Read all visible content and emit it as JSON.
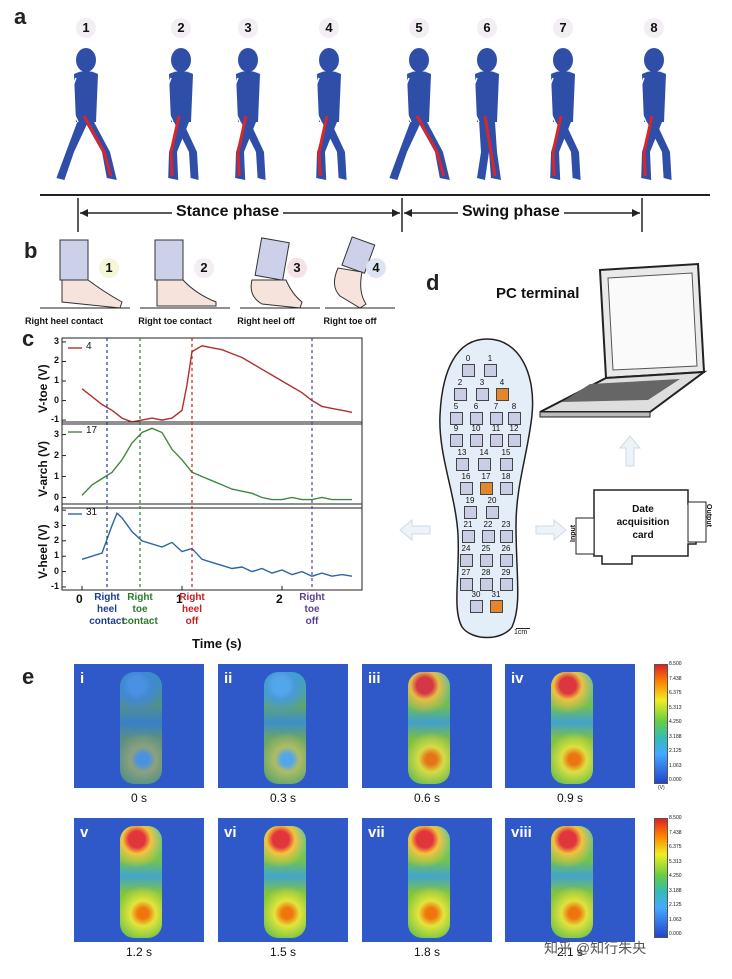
{
  "panel_a": {
    "letter": "a",
    "frames": [
      "1",
      "2",
      "3",
      "4",
      "5",
      "6",
      "7",
      "8"
    ],
    "stance_label": "Stance phase",
    "swing_label": "Swing phase",
    "colors": {
      "body": "#2f4ea8",
      "leg_highlight": "#d9262b"
    }
  },
  "panel_b": {
    "letter": "b",
    "steps": [
      {
        "num": "1",
        "label": "Right heel contact"
      },
      {
        "num": "2",
        "label": "Right toe contact"
      },
      {
        "num": "3",
        "label": "Right heel off"
      },
      {
        "num": "4",
        "label": "Right toe off"
      }
    ]
  },
  "panel_c": {
    "letter": "c",
    "xlabel": "Time (s)",
    "x_ticks": [
      "0",
      "1",
      "2"
    ],
    "events": [
      {
        "label_lines": [
          "Right",
          "heel",
          "contact"
        ],
        "color": "#1f3d8f",
        "time": 0.25
      },
      {
        "label_lines": [
          "Right",
          "toe",
          "contact"
        ],
        "color": "#2d7a2d",
        "time": 0.58
      },
      {
        "label_lines": [
          "Right",
          "heel",
          "off"
        ],
        "color": "#c8201f",
        "time": 1.1
      },
      {
        "label_lines": [
          "Right",
          "toe",
          "off"
        ],
        "color": "#5b3f8f",
        "time": 2.3
      }
    ]
  },
  "panel_d": {
    "letter": "d",
    "pc_label": "PC terminal",
    "card_label_lines": [
      "Date",
      "acquisition",
      "card"
    ],
    "input_label": "Input",
    "output_label": "Output",
    "scale_label": "1cm",
    "sensors": [
      "0",
      "1",
      "2",
      "3",
      "4",
      "5",
      "6",
      "7",
      "8",
      "9",
      "10",
      "11",
      "12",
      "13",
      "14",
      "15",
      "16",
      "17",
      "18",
      "19",
      "20",
      "21",
      "22",
      "23",
      "24",
      "25",
      "26",
      "27",
      "28",
      "29",
      "30",
      "31"
    ],
    "hot_sensors": [
      "4",
      "17",
      "31"
    ]
  },
  "panel_e": {
    "letter": "e",
    "frames": [
      {
        "roman": "i",
        "time": "0 s"
      },
      {
        "roman": "ii",
        "time": "0.3 s"
      },
      {
        "roman": "iii",
        "time": "0.6 s"
      },
      {
        "roman": "iv",
        "time": "0.9 s"
      },
      {
        "roman": "v",
        "time": "1.2 s"
      },
      {
        "roman": "vi",
        "time": "1.5 s"
      },
      {
        "roman": "vii",
        "time": "1.8 s"
      },
      {
        "roman": "viii",
        "time": "2.1 s"
      }
    ],
    "watermark": "知乎 @知行朱央"
  },
  "chart_data": [
    {
      "type": "line",
      "title": "",
      "xlabel": "Time (s)",
      "ylabel": "V-toe (V)",
      "xlim": [
        -0.2,
        2.8
      ],
      "ylim": [
        -1.2,
        3.2
      ],
      "y_ticks": [
        "-1",
        "0",
        "1",
        "2",
        "3"
      ],
      "series": [
        {
          "name": "4",
          "color": "#b0302b",
          "x": [
            0,
            0.1,
            0.2,
            0.3,
            0.4,
            0.5,
            0.6,
            0.7,
            0.8,
            0.9,
            1.0,
            1.05,
            1.1,
            1.2,
            1.3,
            1.4,
            1.5,
            1.6,
            1.7,
            1.8,
            1.9,
            2.0,
            2.1,
            2.2,
            2.3,
            2.4,
            2.5,
            2.6,
            2.7
          ],
          "y": [
            0.6,
            0.2,
            -0.2,
            -0.5,
            -0.9,
            -1.1,
            -1.0,
            -0.9,
            -1.0,
            -0.9,
            -0.5,
            0.8,
            2.5,
            2.8,
            2.7,
            2.6,
            2.4,
            2.2,
            1.9,
            1.6,
            1.3,
            1.0,
            0.7,
            0.4,
            0.0,
            -0.3,
            -0.4,
            -0.5,
            -0.6
          ]
        }
      ]
    },
    {
      "type": "line",
      "title": "",
      "xlabel": "Time (s)",
      "ylabel": "V-arch (V)",
      "xlim": [
        -0.2,
        2.8
      ],
      "ylim": [
        -0.5,
        3.6
      ],
      "y_ticks": [
        "0",
        "1",
        "2",
        "3"
      ],
      "series": [
        {
          "name": "17",
          "color": "#3e8a3a",
          "x": [
            0,
            0.1,
            0.2,
            0.3,
            0.4,
            0.5,
            0.6,
            0.7,
            0.8,
            0.9,
            1.0,
            1.1,
            1.2,
            1.3,
            1.4,
            1.5,
            1.6,
            1.7,
            1.8,
            1.9,
            2.0,
            2.1,
            2.2,
            2.3,
            2.4,
            2.5,
            2.6,
            2.7
          ],
          "y": [
            0.1,
            0.6,
            0.9,
            1.2,
            1.8,
            2.6,
            3.1,
            3.3,
            3.1,
            2.3,
            1.8,
            1.2,
            1.0,
            0.8,
            0.6,
            0.4,
            0.3,
            0.2,
            0.0,
            -0.1,
            -0.1,
            0.0,
            -0.1,
            -0.1,
            0.0,
            -0.1,
            -0.1,
            -0.1
          ]
        }
      ]
    },
    {
      "type": "line",
      "title": "",
      "xlabel": "Time (s)",
      "ylabel": "V-heel (V)",
      "xlim": [
        -0.2,
        2.8
      ],
      "ylim": [
        -1.2,
        4.4
      ],
      "y_ticks": [
        "-1",
        "0",
        "1",
        "2",
        "3",
        "4"
      ],
      "series": [
        {
          "name": "31",
          "color": "#2a65a8",
          "x": [
            0,
            0.1,
            0.2,
            0.3,
            0.35,
            0.4,
            0.5,
            0.6,
            0.7,
            0.8,
            0.9,
            1.0,
            1.1,
            1.2,
            1.3,
            1.4,
            1.5,
            1.6,
            1.7,
            1.8,
            1.9,
            2.0,
            2.1,
            2.2,
            2.3,
            2.4,
            2.5,
            2.6,
            2.7
          ],
          "y": [
            0.8,
            1.0,
            1.2,
            3.0,
            3.8,
            3.5,
            2.6,
            2.0,
            1.8,
            1.6,
            1.9,
            1.3,
            1.5,
            0.8,
            0.6,
            0.4,
            0.2,
            0.3,
            0.0,
            0.2,
            -0.1,
            0.1,
            -0.2,
            0.0,
            -0.3,
            -0.1,
            -0.3,
            -0.2,
            -0.3
          ]
        }
      ]
    }
  ],
  "colorbars": [
    {
      "ticks": [
        "8.500",
        "7.438",
        "6.375",
        "5.313",
        "4.250",
        "3.188",
        "2.125",
        "1.063",
        "0.000"
      ],
      "unit": "(V)"
    },
    {
      "ticks": [
        "8.500",
        "7.438",
        "6.375",
        "5.313",
        "4.250",
        "3.188",
        "2.125",
        "1.063",
        "0.000"
      ]
    }
  ]
}
